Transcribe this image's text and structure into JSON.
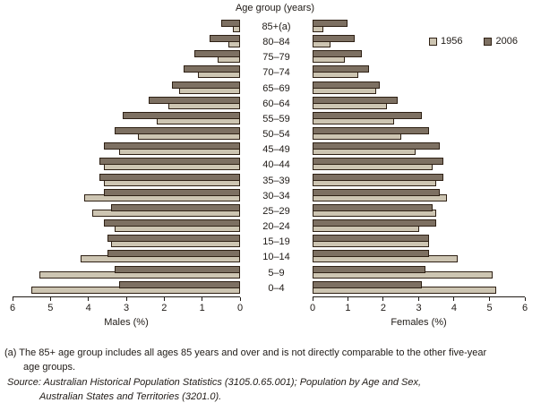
{
  "chart_data": {
    "type": "bar",
    "subtype": "population-pyramid",
    "title": "Age group (years)",
    "left_axis_label": "Males (%)",
    "right_axis_label": "Females (%)",
    "axis_ticks": [
      0,
      1,
      2,
      3,
      4,
      5,
      6
    ],
    "axis_max": 6,
    "grid": false,
    "legend_position": "top-right",
    "legend": [
      {
        "name": "1956",
        "color": "#cdc5b2"
      },
      {
        "name": "2006",
        "color": "#7d7062"
      }
    ],
    "colors": {
      "outline": "#2e2014",
      "text": "#1f1a16"
    },
    "age_groups": [
      "85+(a)",
      "80–84",
      "75–79",
      "70–74",
      "65–69",
      "60–64",
      "55–59",
      "50–54",
      "45–49",
      "40–44",
      "35–39",
      "30–34",
      "25–29",
      "20–24",
      "15–19",
      "10–14",
      "5–9",
      "0–4"
    ],
    "series": [
      {
        "name": "1956",
        "sex": "male",
        "values": [
          0.2,
          0.3,
          0.6,
          1.1,
          1.6,
          1.9,
          2.2,
          2.7,
          3.2,
          3.6,
          3.6,
          4.1,
          3.9,
          3.3,
          3.4,
          4.2,
          5.3,
          5.5
        ]
      },
      {
        "name": "2006",
        "sex": "male",
        "values": [
          0.5,
          0.8,
          1.2,
          1.5,
          1.8,
          2.4,
          3.1,
          3.3,
          3.6,
          3.7,
          3.7,
          3.6,
          3.4,
          3.6,
          3.5,
          3.5,
          3.3,
          3.2
        ]
      },
      {
        "name": "1956",
        "sex": "female",
        "values": [
          0.3,
          0.5,
          0.9,
          1.3,
          1.8,
          2.1,
          2.3,
          2.5,
          2.9,
          3.4,
          3.5,
          3.8,
          3.5,
          3.0,
          3.3,
          4.1,
          5.1,
          5.2
        ]
      },
      {
        "name": "2006",
        "sex": "female",
        "values": [
          1.0,
          1.2,
          1.4,
          1.6,
          1.9,
          2.4,
          3.1,
          3.3,
          3.6,
          3.7,
          3.7,
          3.6,
          3.4,
          3.5,
          3.3,
          3.3,
          3.2,
          3.1
        ]
      }
    ]
  },
  "footnote": {
    "line1": "(a) The 85+ age group includes all ages 85 years and over and is not directly comparable to the other five-year",
    "line2": "age groups."
  },
  "source": {
    "line1": "Source: Australian Historical Population Statistics (3105.0.65.001); Population by Age and Sex,",
    "line2": "Australian States and Territories (3201.0)."
  }
}
